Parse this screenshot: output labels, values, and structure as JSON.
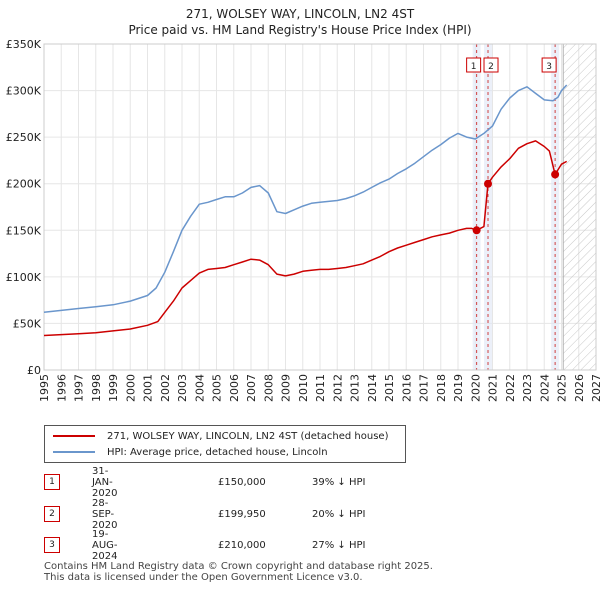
{
  "title_line1": "271, WOLSEY WAY, LINCOLN, LN2 4ST",
  "title_line2": "Price paid vs. HM Land Registry's House Price Index (HPI)",
  "chart_data": {
    "type": "line",
    "xlim": [
      1995,
      2027
    ],
    "ylim": [
      0,
      350000
    ],
    "y_ticks": [
      0,
      50000,
      100000,
      150000,
      200000,
      250000,
      300000,
      350000
    ],
    "y_tick_labels": [
      "£0",
      "£50K",
      "£100K",
      "£150K",
      "£200K",
      "£250K",
      "£300K",
      "£350K"
    ],
    "x_ticks": [
      1995,
      1996,
      1997,
      1998,
      1999,
      2000,
      2001,
      2002,
      2003,
      2004,
      2005,
      2006,
      2007,
      2008,
      2009,
      2010,
      2011,
      2012,
      2013,
      2014,
      2015,
      2016,
      2017,
      2018,
      2019,
      2020,
      2021,
      2022,
      2023,
      2024,
      2025,
      2026,
      2027
    ],
    "forecast_start": 2025.1,
    "series": [
      {
        "name": "271, WOLSEY WAY, LINCOLN, LN2 4ST (detached house)",
        "color": "#cc0000",
        "x": [
          1995.0,
          1996.0,
          1997.0,
          1998.0,
          1999.0,
          2000.0,
          2001.0,
          2001.6,
          2002.0,
          2002.5,
          2003.0,
          2003.5,
          2004.0,
          2004.5,
          2005.0,
          2005.5,
          2006.0,
          2006.5,
          2007.0,
          2007.5,
          2008.0,
          2008.5,
          2009.0,
          2009.5,
          2010.0,
          2010.5,
          2011.0,
          2011.5,
          2012.0,
          2012.5,
          2013.0,
          2013.5,
          2014.0,
          2014.5,
          2015.0,
          2015.5,
          2016.0,
          2016.5,
          2017.0,
          2017.5,
          2018.0,
          2018.5,
          2019.0,
          2019.5,
          2019.8,
          2020.08,
          2020.5,
          2020.74,
          2021.0,
          2021.5,
          2022.0,
          2022.5,
          2023.0,
          2023.5,
          2024.0,
          2024.3,
          2024.63,
          2024.9,
          2025.0,
          2025.3
        ],
        "y": [
          37000,
          38000,
          39000,
          40000,
          42000,
          44000,
          48000,
          52000,
          62000,
          74000,
          88000,
          96000,
          104000,
          108000,
          109000,
          110000,
          113000,
          116000,
          119000,
          118000,
          113000,
          103000,
          101000,
          103000,
          106000,
          107000,
          108000,
          108000,
          109000,
          110000,
          112000,
          114000,
          118000,
          122000,
          127000,
          131000,
          134000,
          137000,
          140000,
          143000,
          145000,
          147000,
          150000,
          152000,
          152000,
          150000,
          154000,
          199950,
          207000,
          218000,
          227000,
          238000,
          243000,
          246000,
          240000,
          235000,
          210000,
          218000,
          221000,
          224000
        ]
      },
      {
        "name": "HPI: Average price, detached house, Lincoln",
        "color": "#6a96cc",
        "x": [
          1995.0,
          1996.0,
          1997.0,
          1998.0,
          1999.0,
          2000.0,
          2001.0,
          2001.5,
          2002.0,
          2002.5,
          2003.0,
          2003.5,
          2004.0,
          2004.5,
          2005.0,
          2005.5,
          2006.0,
          2006.5,
          2007.0,
          2007.5,
          2008.0,
          2008.5,
          2009.0,
          2009.5,
          2010.0,
          2010.5,
          2011.0,
          2011.5,
          2012.0,
          2012.5,
          2013.0,
          2013.5,
          2014.0,
          2014.5,
          2015.0,
          2015.5,
          2016.0,
          2016.5,
          2017.0,
          2017.5,
          2018.0,
          2018.5,
          2019.0,
          2019.5,
          2020.0,
          2020.5,
          2021.0,
          2021.5,
          2022.0,
          2022.5,
          2023.0,
          2023.5,
          2024.0,
          2024.5,
          2024.8,
          2025.0,
          2025.3
        ],
        "y": [
          62000,
          64000,
          66000,
          68000,
          70000,
          74000,
          80000,
          88000,
          105000,
          127000,
          150000,
          165000,
          178000,
          180000,
          183000,
          186000,
          186000,
          190000,
          196000,
          198000,
          190000,
          170000,
          168000,
          172000,
          176000,
          179000,
          180000,
          181000,
          182000,
          184000,
          187000,
          191000,
          196000,
          201000,
          205000,
          211000,
          216000,
          222000,
          229000,
          236000,
          242000,
          249000,
          254000,
          250000,
          248000,
          254000,
          262000,
          280000,
          292000,
          300000,
          304000,
          297000,
          290000,
          289000,
          293000,
          300000,
          306000
        ]
      }
    ],
    "transactions": [
      {
        "label": "1",
        "date": "31-JAN-2020",
        "x": 2020.08,
        "price": "£150,000",
        "value": 150000,
        "hpi": "39% ↓ HPI"
      },
      {
        "label": "2",
        "date": "28-SEP-2020",
        "x": 2020.74,
        "price": "£199,950",
        "value": 199950,
        "hpi": "20% ↓ HPI"
      },
      {
        "label": "3",
        "date": "19-AUG-2024",
        "x": 2024.63,
        "price": "£210,000",
        "value": 210000,
        "hpi": "27% ↓ HPI"
      }
    ]
  },
  "legend": {
    "property_label": "271, WOLSEY WAY, LINCOLN, LN2 4ST (detached house)",
    "hpi_label": "HPI: Average price, detached house, Lincoln"
  },
  "footer": {
    "line1": "Contains HM Land Registry data © Crown copyright and database right 2025.",
    "line2": "This data is licensed under the Open Government Licence v3.0."
  }
}
